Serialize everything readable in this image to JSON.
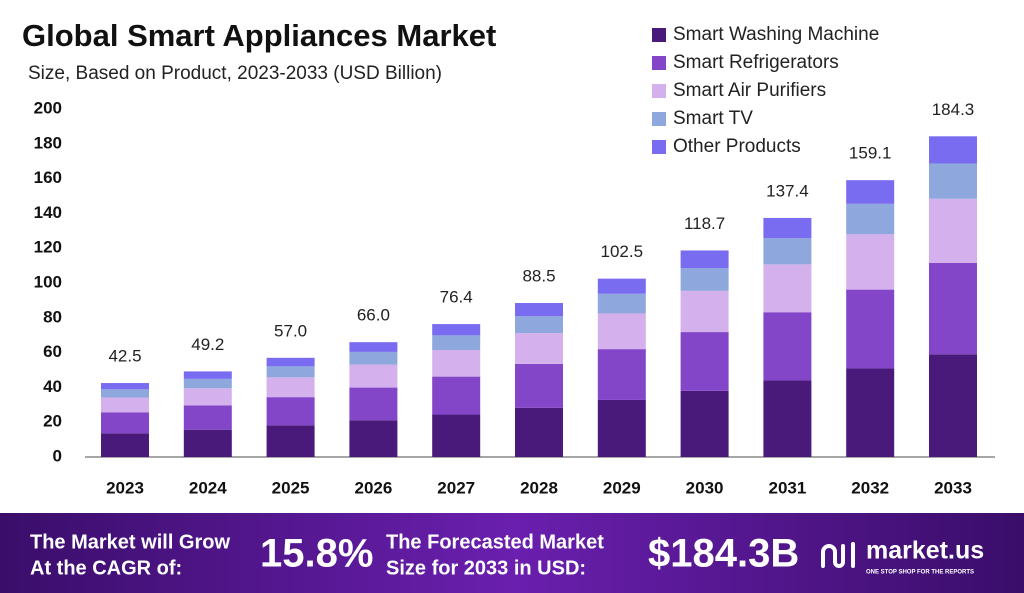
{
  "chart_data": {
    "type": "stacked-bar",
    "title": "Global Smart Appliances Market",
    "subtitle": "Size, Based on Product, 2023-2033 (USD Billion)",
    "categories": [
      "2023",
      "2024",
      "2025",
      "2026",
      "2027",
      "2028",
      "2029",
      "2030",
      "2031",
      "2032",
      "2033"
    ],
    "series": [
      {
        "name": "Smart Washing Machine",
        "color": "#4a1a7a",
        "values": [
          13.6,
          15.7,
          18.2,
          21.1,
          24.4,
          28.3,
          32.8,
          38.0,
          44.0,
          50.9,
          59.0
        ]
      },
      {
        "name": "Smart Refrigerators",
        "color": "#8446c9",
        "values": [
          12.1,
          14.0,
          16.2,
          18.8,
          21.8,
          25.2,
          29.2,
          33.8,
          39.2,
          45.3,
          52.5
        ]
      },
      {
        "name": "Smart Air Purifiers",
        "color": "#d4b0ec",
        "values": [
          8.5,
          9.8,
          11.4,
          13.2,
          15.3,
          17.7,
          20.5,
          23.7,
          27.5,
          31.8,
          36.9
        ]
      },
      {
        "name": "Smart TV",
        "color": "#8ea7dc",
        "values": [
          4.7,
          5.4,
          6.3,
          7.3,
          8.4,
          9.7,
          11.3,
          13.1,
          15.1,
          17.5,
          20.3
        ]
      },
      {
        "name": "Other Products",
        "color": "#7a6cf0",
        "values": [
          3.6,
          4.3,
          4.9,
          5.6,
          6.5,
          7.6,
          8.7,
          10.1,
          11.6,
          13.6,
          15.6
        ]
      }
    ],
    "totals": [
      42.5,
      49.2,
      57.0,
      66.0,
      76.4,
      88.5,
      102.5,
      118.7,
      137.4,
      159.1,
      184.3
    ],
    "total_labels": [
      "42.5",
      "49.2",
      "57.0",
      "66.0",
      "76.4",
      "88.5",
      "102.5",
      "118.7",
      "137.4",
      "159.1",
      "184.3"
    ],
    "ylim": [
      0,
      200
    ],
    "yticks": [
      0,
      20,
      40,
      60,
      80,
      100,
      120,
      140,
      160,
      180,
      200
    ],
    "grid": false,
    "legend": "top-right"
  },
  "footer": {
    "cagr_text": [
      "The Market will Grow",
      "At the CAGR of:"
    ],
    "cagr": "15.8%",
    "forecast_text": [
      "The Forecasted Market",
      "Size for 2033 in USD:"
    ],
    "forecast": "$184.3B",
    "brand": "market.us",
    "tagline": "ONE STOP SHOP FOR THE REPORTS"
  }
}
